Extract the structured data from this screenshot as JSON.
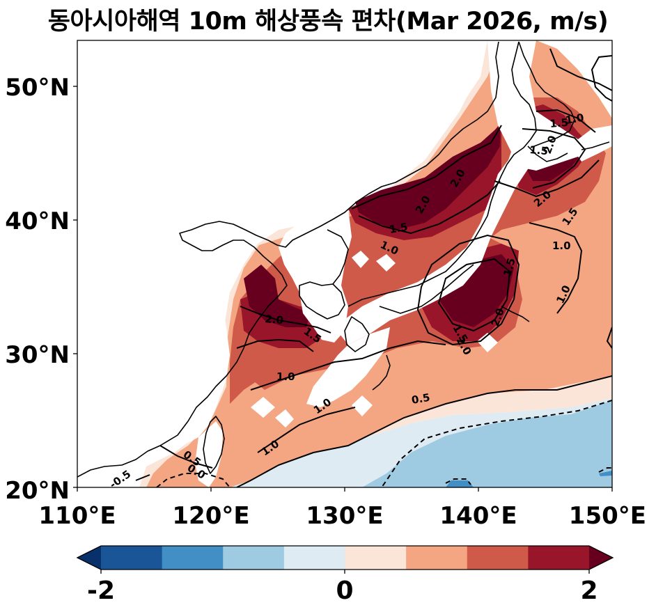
{
  "title": "동아시아해역 10m 해상풍속 편차(Mar 2026, m/s)",
  "map": {
    "x_ticks": [
      "110°E",
      "120°E",
      "130°E",
      "140°E",
      "150°E"
    ],
    "y_ticks": [
      "20°N",
      "30°N",
      "40°N",
      "50°N"
    ],
    "lon_range": [
      110,
      150
    ],
    "lat_range": [
      20,
      53.5
    ]
  },
  "colorbar": {
    "ticks": [
      "-2",
      "0",
      "2"
    ],
    "colors": [
      "#08306b",
      "#1a5597",
      "#418fc4",
      "#9ecbe1",
      "#deebf3",
      "#fbe5d9",
      "#f4a683",
      "#d05a49",
      "#99152a",
      "#67001f"
    ]
  },
  "contour_labels": [
    "1.0",
    "1.5",
    "2.0",
    "1.5",
    "2.0",
    "1.5",
    "2.0",
    "1.0",
    "1.5",
    "2.0",
    "1.5",
    "1.0",
    "1.5",
    "1.0",
    "2.0",
    "2.0",
    "2.0",
    "1.5",
    "1.0",
    "1.0",
    "0.5",
    "1.0",
    "0.5",
    "0.0",
    "-0.5"
  ]
}
